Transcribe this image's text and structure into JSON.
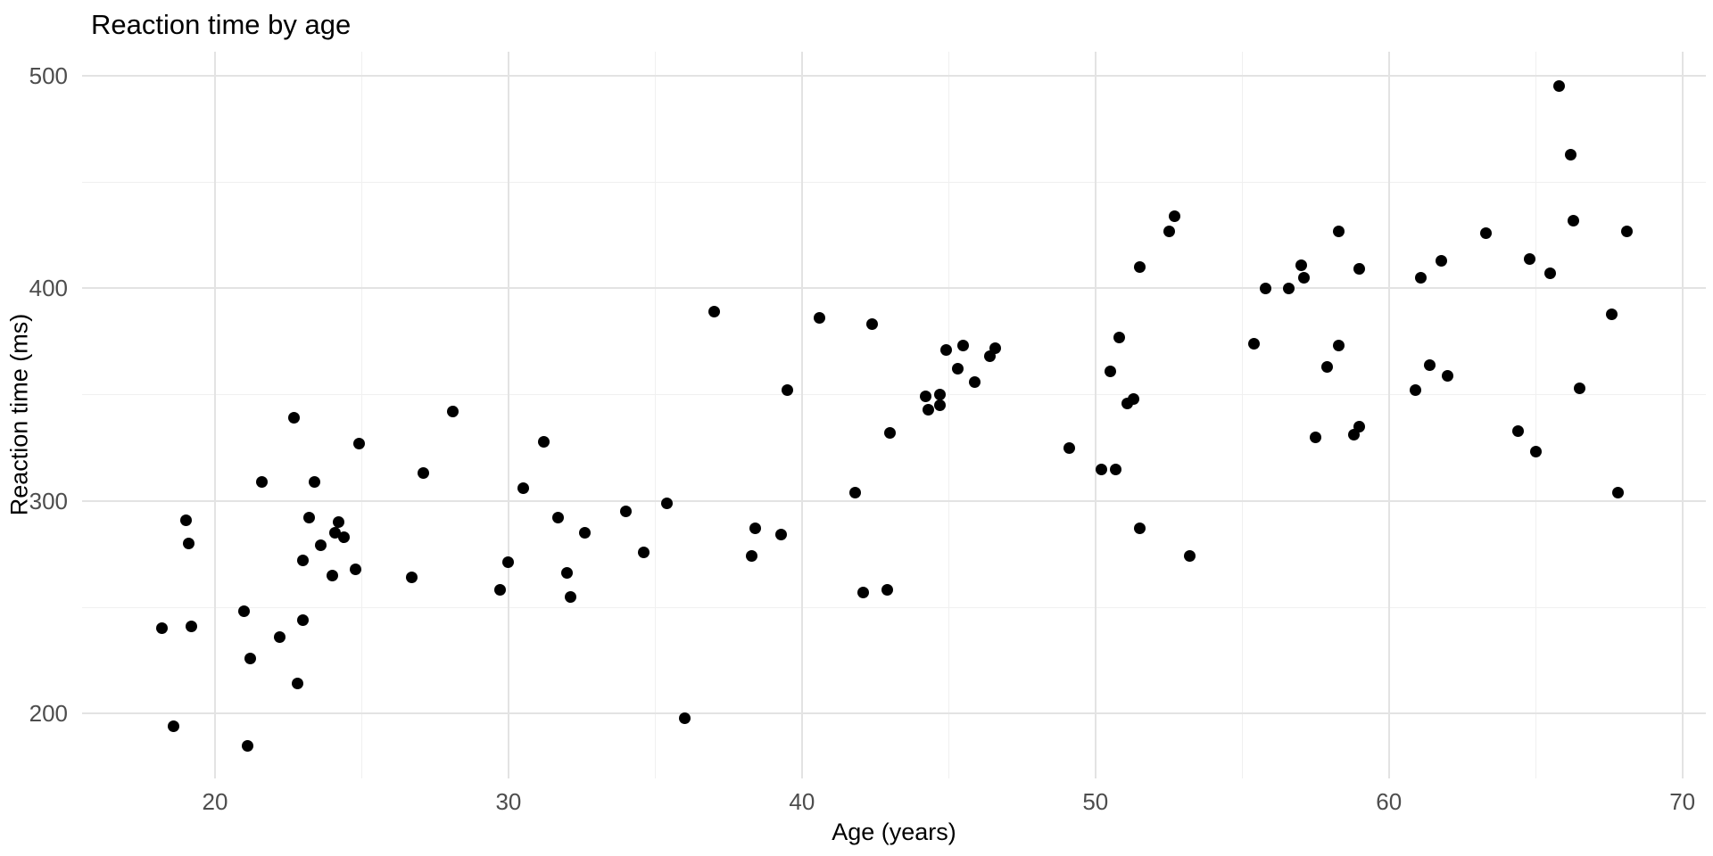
{
  "title": "Reaction time by age",
  "axes": {
    "x_title": "Age (years)",
    "y_title": "Reaction time (ms)"
  },
  "colors": {
    "background": "#ffffff",
    "point": "#000000",
    "grid_major": "#e3e3e3",
    "grid_minor": "#f0f0f0",
    "tick_label": "#4d4d4d",
    "title_text": "#000000"
  },
  "chart_data": {
    "type": "scatter",
    "title": "Reaction time by age",
    "xlabel": "Age (years)",
    "ylabel": "Reaction time (ms)",
    "xlim": [
      15.47,
      70.8
    ],
    "ylim": [
      169.5,
      511.3
    ],
    "x_major_ticks": [
      20,
      30,
      40,
      50,
      60,
      70
    ],
    "x_minor_ticks": [
      25,
      35,
      45,
      55,
      65
    ],
    "y_major_ticks": [
      200,
      300,
      400,
      500
    ],
    "y_minor_ticks": [
      250,
      350,
      450
    ],
    "grid": "major and minor gridlines, light gray on white, no axis lines",
    "legend": "none",
    "points": [
      [
        18.2,
        240
      ],
      [
        18.6,
        194
      ],
      [
        19.0,
        291
      ],
      [
        19.1,
        280
      ],
      [
        19.2,
        241
      ],
      [
        21.0,
        248
      ],
      [
        21.1,
        185
      ],
      [
        21.2,
        226
      ],
      [
        21.6,
        309
      ],
      [
        22.2,
        236
      ],
      [
        22.7,
        339
      ],
      [
        22.8,
        214
      ],
      [
        23.0,
        272
      ],
      [
        23.0,
        244
      ],
      [
        23.2,
        292
      ],
      [
        23.4,
        309
      ],
      [
        23.6,
        279
      ],
      [
        24.0,
        265
      ],
      [
        24.1,
        285
      ],
      [
        24.2,
        290
      ],
      [
        24.4,
        283
      ],
      [
        24.8,
        268
      ],
      [
        24.9,
        327
      ],
      [
        26.7,
        264
      ],
      [
        27.1,
        313
      ],
      [
        28.1,
        342
      ],
      [
        29.7,
        258
      ],
      [
        30.0,
        271
      ],
      [
        30.5,
        306
      ],
      [
        31.2,
        328
      ],
      [
        31.7,
        292
      ],
      [
        32.0,
        266
      ],
      [
        32.1,
        255
      ],
      [
        32.6,
        285
      ],
      [
        34.0,
        295
      ],
      [
        34.6,
        276
      ],
      [
        35.4,
        299
      ],
      [
        36.0,
        198
      ],
      [
        37.0,
        389
      ],
      [
        38.3,
        274
      ],
      [
        38.4,
        287
      ],
      [
        39.3,
        284
      ],
      [
        39.5,
        352
      ],
      [
        40.6,
        386
      ],
      [
        41.8,
        304
      ],
      [
        42.1,
        257
      ],
      [
        42.4,
        383
      ],
      [
        42.9,
        258
      ],
      [
        43.0,
        332
      ],
      [
        44.2,
        349
      ],
      [
        44.3,
        343
      ],
      [
        44.7,
        350
      ],
      [
        44.7,
        345
      ],
      [
        44.9,
        371
      ],
      [
        45.3,
        362
      ],
      [
        45.5,
        373
      ],
      [
        45.9,
        356
      ],
      [
        46.4,
        368
      ],
      [
        46.6,
        372
      ],
      [
        49.1,
        325
      ],
      [
        50.2,
        315
      ],
      [
        50.5,
        361
      ],
      [
        50.7,
        315
      ],
      [
        50.8,
        377
      ],
      [
        51.1,
        346
      ],
      [
        51.3,
        348
      ],
      [
        51.5,
        410
      ],
      [
        51.5,
        287
      ],
      [
        52.5,
        427
      ],
      [
        52.7,
        434
      ],
      [
        53.2,
        274
      ],
      [
        55.4,
        374
      ],
      [
        55.8,
        400
      ],
      [
        56.6,
        400
      ],
      [
        57.0,
        411
      ],
      [
        57.1,
        405
      ],
      [
        57.5,
        330
      ],
      [
        57.9,
        363
      ],
      [
        58.3,
        427
      ],
      [
        58.3,
        373
      ],
      [
        58.8,
        331
      ],
      [
        59.0,
        409
      ],
      [
        59.0,
        335
      ],
      [
        60.9,
        352
      ],
      [
        61.1,
        405
      ],
      [
        61.4,
        364
      ],
      [
        61.8,
        413
      ],
      [
        62.0,
        359
      ],
      [
        63.3,
        426
      ],
      [
        64.4,
        333
      ],
      [
        64.8,
        414
      ],
      [
        65.0,
        323
      ],
      [
        65.5,
        407
      ],
      [
        65.8,
        495
      ],
      [
        66.2,
        463
      ],
      [
        66.3,
        432
      ],
      [
        66.5,
        353
      ],
      [
        67.6,
        388
      ],
      [
        67.8,
        304
      ],
      [
        68.1,
        427
      ]
    ]
  }
}
